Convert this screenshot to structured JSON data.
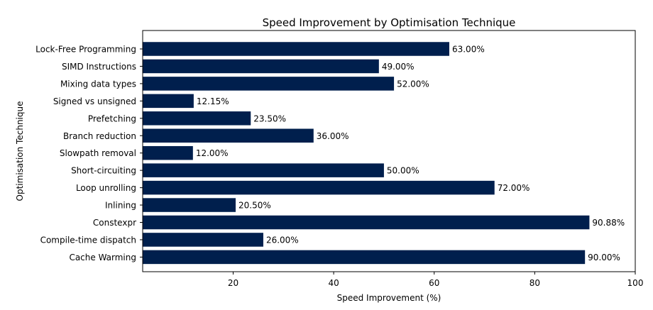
{
  "chart_data": {
    "type": "bar",
    "orientation": "horizontal",
    "title": "Speed Improvement by Optimisation Technique",
    "xlabel": "Speed Improvement (%)",
    "ylabel": "Optimisation Technique",
    "xlim": [
      2,
      100
    ],
    "xticks": [
      20,
      40,
      60,
      80,
      100
    ],
    "grid": false,
    "bar_color": "#001f4d",
    "categories": [
      "Lock-Free Programming",
      "SIMD Instructions",
      "Mixing data types",
      "Signed vs unsigned",
      "Prefetching",
      "Branch reduction",
      "Slowpath removal",
      "Short-circuiting",
      "Loop unrolling",
      "Inlining",
      "Constexpr",
      "Compile-time dispatch",
      "Cache Warming"
    ],
    "values": [
      63.0,
      49.0,
      52.0,
      12.15,
      23.5,
      36.0,
      12.0,
      50.0,
      72.0,
      20.5,
      90.88,
      26.0,
      90.0
    ],
    "data_labels": [
      "63.00%",
      "49.00%",
      "52.00%",
      "12.15%",
      "23.50%",
      "36.00%",
      "12.00%",
      "50.00%",
      "72.00%",
      "20.50%",
      "90.88%",
      "26.00%",
      "90.00%"
    ]
  }
}
